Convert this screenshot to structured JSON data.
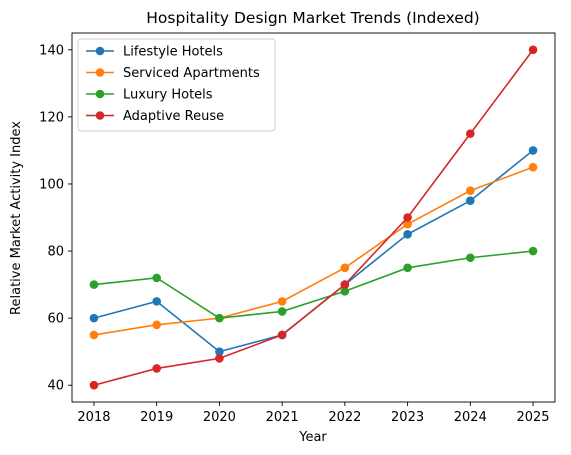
{
  "chart_data": {
    "type": "line",
    "title": "Hospitality Design Market Trends (Indexed)",
    "xlabel": "Year",
    "ylabel": "Relative Market Activity Index",
    "x": [
      2018,
      2019,
      2020,
      2021,
      2022,
      2023,
      2024,
      2025
    ],
    "xlim": [
      2017.65,
      2025.35
    ],
    "ylim": [
      35,
      145
    ],
    "yticks": [
      40,
      60,
      80,
      100,
      120,
      140
    ],
    "grid": false,
    "legend": "upper-left",
    "series": [
      {
        "name": "Lifestyle Hotels",
        "color": "#1f77b4",
        "values": [
          60,
          65,
          50,
          55,
          70,
          85,
          95,
          110
        ]
      },
      {
        "name": "Serviced Apartments",
        "color": "#ff7f0e",
        "values": [
          55,
          58,
          60,
          65,
          75,
          88,
          98,
          105
        ]
      },
      {
        "name": "Luxury Hotels",
        "color": "#2ca02c",
        "values": [
          70,
          72,
          60,
          62,
          68,
          75,
          78,
          80
        ]
      },
      {
        "name": "Adaptive Reuse",
        "color": "#d62728",
        "values": [
          40,
          45,
          48,
          55,
          70,
          90,
          115,
          140
        ]
      }
    ]
  }
}
